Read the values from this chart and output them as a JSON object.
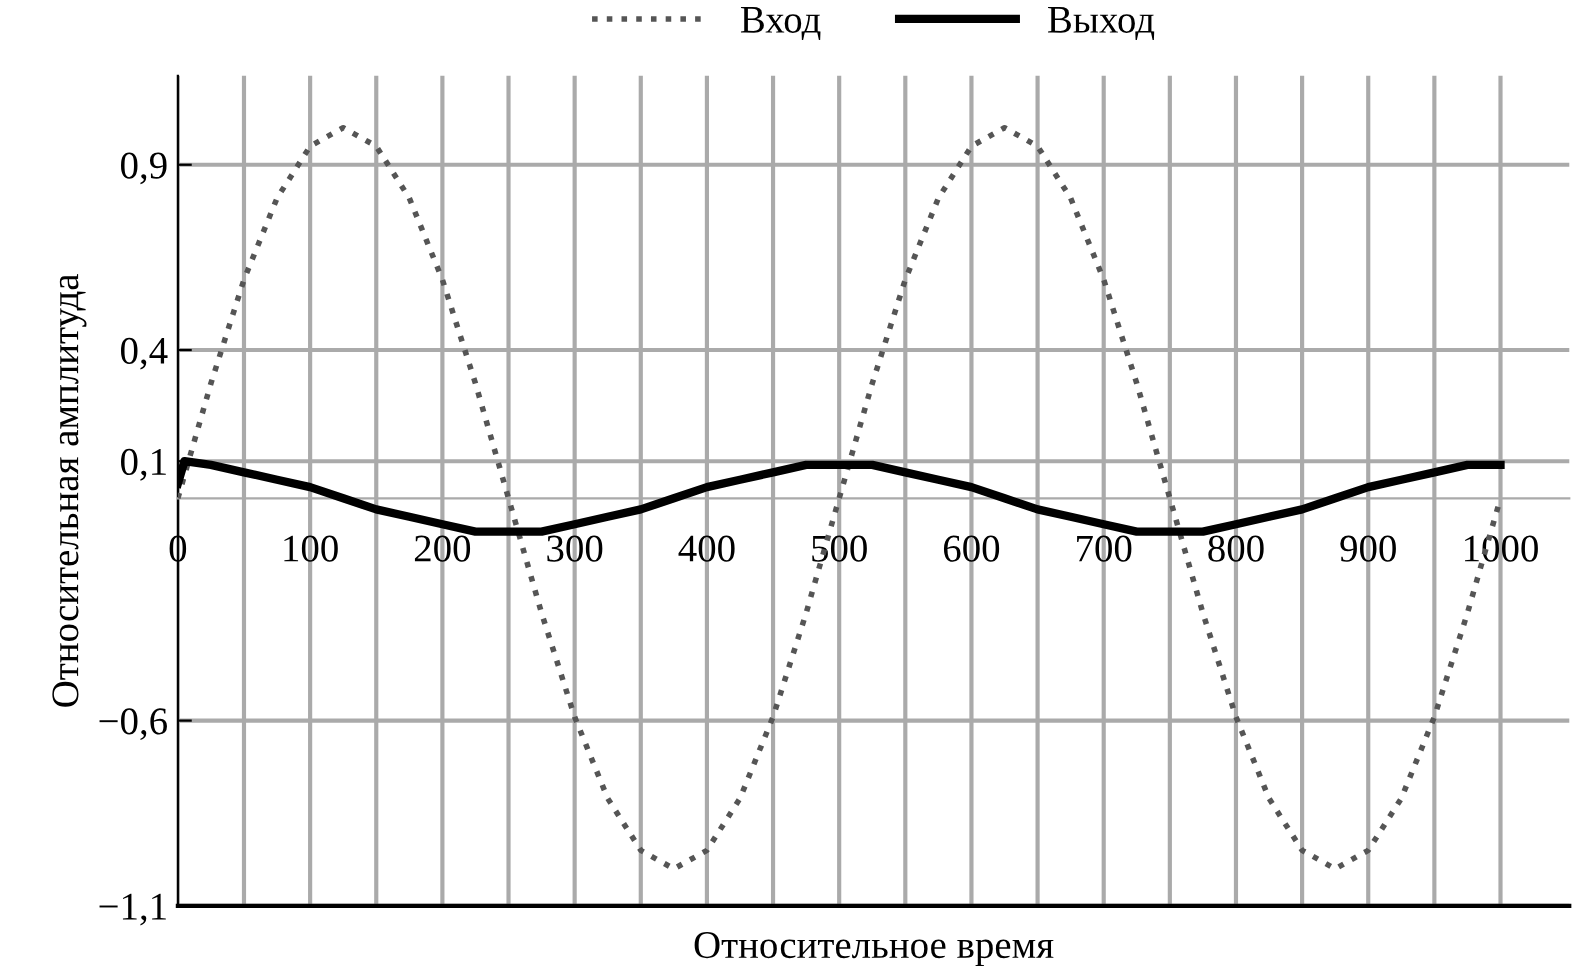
{
  "chart_data": {
    "type": "line",
    "xlabel": "Относительное время",
    "ylabel": "Относительная амплитуда",
    "xlim": [
      0,
      1052
    ],
    "ylim": [
      -1.1,
      1.14
    ],
    "xticks": [
      0,
      {
        "value": 50,
        "label": null
      },
      100,
      {
        "value": 150,
        "label": null
      },
      200,
      {
        "value": 250,
        "label": null
      },
      300,
      {
        "value": 350,
        "label": null
      },
      400,
      {
        "value": 450,
        "label": null
      },
      500,
      {
        "value": 550,
        "label": null
      },
      600,
      {
        "value": 650,
        "label": null
      },
      700,
      {
        "value": 750,
        "label": null
      },
      800,
      {
        "value": 850,
        "label": null
      },
      900,
      {
        "value": 950,
        "label": null
      },
      1000
    ],
    "yticks": [
      {
        "value": 0.9,
        "label": "0,9"
      },
      {
        "value": 0.4,
        "label": "0,4"
      },
      {
        "value": 0.1,
        "label": "0,1"
      },
      {
        "value": -0.6,
        "label": "−0,6"
      },
      {
        "value": -1.1,
        "label": "−1,1"
      }
    ],
    "grid": true,
    "legend": "top",
    "series": [
      {
        "name": "Вход",
        "color": "#555555",
        "line_style": "dotted",
        "x": [
          0,
          25,
          50,
          75,
          100,
          125,
          150,
          175,
          200,
          225,
          250,
          275,
          300,
          325,
          350,
          375,
          400,
          425,
          450,
          475,
          500,
          525,
          550,
          575,
          600,
          625,
          650,
          675,
          700,
          725,
          750,
          775,
          800,
          825,
          850,
          875,
          900,
          925,
          950,
          975,
          1000
        ],
        "values": [
          0,
          0.31,
          0.59,
          0.81,
          0.95,
          1.0,
          0.95,
          0.81,
          0.59,
          0.31,
          0,
          -0.31,
          -0.59,
          -0.81,
          -0.95,
          -1.0,
          -0.95,
          -0.81,
          -0.59,
          -0.31,
          0,
          0.31,
          0.59,
          0.81,
          0.95,
          1.0,
          0.95,
          0.81,
          0.59,
          0.31,
          0,
          -0.31,
          -0.59,
          -0.81,
          -0.95,
          -1.0,
          -0.95,
          -0.81,
          -0.59,
          -0.31,
          0
        ]
      },
      {
        "name": "Выход",
        "color": "#000000",
        "line_style": "solid",
        "x": [
          0,
          5,
          25,
          50,
          75,
          100,
          125,
          150,
          175,
          200,
          225,
          250,
          275,
          300,
          325,
          350,
          375,
          400,
          425,
          450,
          475,
          500,
          525,
          550,
          575,
          600,
          625,
          650,
          675,
          700,
          725,
          750,
          775,
          800,
          825,
          850,
          875,
          900,
          925,
          950,
          975,
          1000
        ],
        "values": [
          0.04,
          0.1,
          0.09,
          0.07,
          0.05,
          0.03,
          0,
          -0.03,
          -0.05,
          -0.07,
          -0.09,
          -0.09,
          -0.09,
          -0.07,
          -0.05,
          -0.03,
          0,
          0.03,
          0.05,
          0.07,
          0.09,
          0.09,
          0.09,
          0.07,
          0.05,
          0.03,
          0,
          -0.03,
          -0.05,
          -0.07,
          -0.09,
          -0.09,
          -0.09,
          -0.07,
          -0.05,
          -0.03,
          0,
          0.03,
          0.05,
          0.07,
          0.09,
          0.09
        ]
      }
    ]
  }
}
